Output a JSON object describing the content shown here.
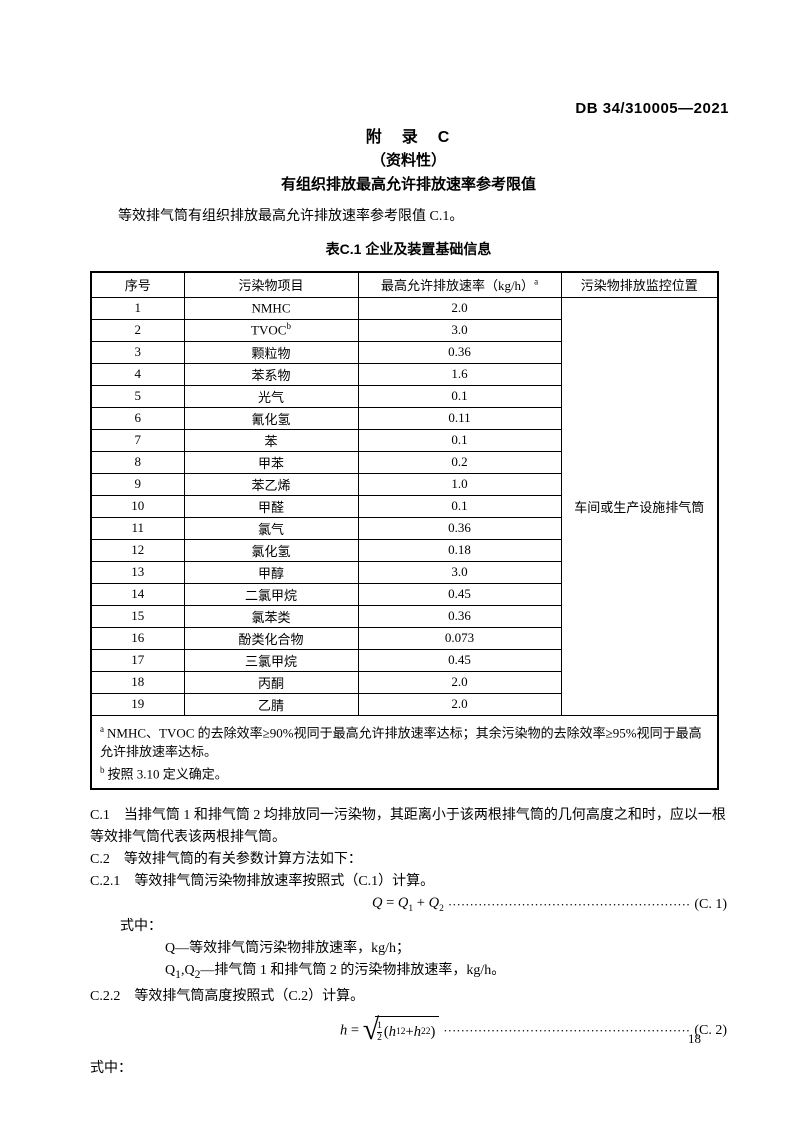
{
  "header": {
    "doc_number": "DB 34/310005—2021"
  },
  "appendix": {
    "title": "附　录　C",
    "classification": "（资料性）",
    "heading": "有组织排放最高允许排放速率参考限值",
    "intro": "等效排气筒有组织排放最高允许排放速率参考限值 C.1。"
  },
  "table": {
    "caption": "表C.1 企业及装置基础信息",
    "columns": [
      "序号",
      "污染物项目",
      "最高允许排放速率（kg/h）",
      "污染物排放监控位置"
    ],
    "rate_header_sup": "a",
    "monitoring_location": "车间或生产设施排气筒",
    "rows": [
      {
        "no": "1",
        "pollutant": "NMHC",
        "pollutant_sup": "",
        "rate": "2.0"
      },
      {
        "no": "2",
        "pollutant": "TVOC",
        "pollutant_sup": "b",
        "rate": "3.0"
      },
      {
        "no": "3",
        "pollutant": "颗粒物",
        "pollutant_sup": "",
        "rate": "0.36"
      },
      {
        "no": "4",
        "pollutant": "苯系物",
        "pollutant_sup": "",
        "rate": "1.6"
      },
      {
        "no": "5",
        "pollutant": "光气",
        "pollutant_sup": "",
        "rate": "0.1"
      },
      {
        "no": "6",
        "pollutant": "氰化氢",
        "pollutant_sup": "",
        "rate": "0.11"
      },
      {
        "no": "7",
        "pollutant": "苯",
        "pollutant_sup": "",
        "rate": "0.1"
      },
      {
        "no": "8",
        "pollutant": "甲苯",
        "pollutant_sup": "",
        "rate": "0.2"
      },
      {
        "no": "9",
        "pollutant": "苯乙烯",
        "pollutant_sup": "",
        "rate": "1.0"
      },
      {
        "no": "10",
        "pollutant": "甲醛",
        "pollutant_sup": "",
        "rate": "0.1"
      },
      {
        "no": "11",
        "pollutant": "氯气",
        "pollutant_sup": "",
        "rate": "0.36"
      },
      {
        "no": "12",
        "pollutant": "氯化氢",
        "pollutant_sup": "",
        "rate": "0.18"
      },
      {
        "no": "13",
        "pollutant": "甲醇",
        "pollutant_sup": "",
        "rate": "3.0"
      },
      {
        "no": "14",
        "pollutant": "二氯甲烷",
        "pollutant_sup": "",
        "rate": "0.45"
      },
      {
        "no": "15",
        "pollutant": "氯苯类",
        "pollutant_sup": "",
        "rate": "0.36"
      },
      {
        "no": "16",
        "pollutant": "酚类化合物",
        "pollutant_sup": "",
        "rate": "0.073"
      },
      {
        "no": "17",
        "pollutant": "三氯甲烷",
        "pollutant_sup": "",
        "rate": "0.45"
      },
      {
        "no": "18",
        "pollutant": "丙酮",
        "pollutant_sup": "",
        "rate": "2.0"
      },
      {
        "no": "19",
        "pollutant": "乙腈",
        "pollutant_sup": "",
        "rate": "2.0"
      }
    ],
    "footnotes": [
      {
        "marker": "a",
        "text": "NMHC、TVOC 的去除效率≥90%视同于最高允许排放速率达标；其余污染物的去除效率≥95%视同于最高允许排放速率达标。"
      },
      {
        "marker": "b",
        "text": "按照 3.10 定义确定。"
      }
    ]
  },
  "body": {
    "c1": "C.1　当排气筒 1 和排气筒 2 均排放同一污染物，其距离小于该两根排气筒的几何高度之和时，应以一根等效排气筒代表该两根排气筒。",
    "c2": "C.2　等效排气筒的有关参数计算方法如下：",
    "c21": "C.2.1　等效排气筒污染物排放速率按照式（C.1）计算。",
    "eq1": {
      "lhs": "Q",
      "equals": " = ",
      "q1": "Q",
      "q1_sub": "1",
      "plus": " + ",
      "q2": "Q",
      "q2_sub": "2",
      "label": "(C. 1)"
    },
    "where1": "式中：",
    "def_q": {
      "sym": "Q",
      "text": "—等效排气筒污染物排放速率，kg/h；"
    },
    "def_q12": {
      "sym1": "Q",
      "sym1_sub": "1",
      "comma": ",",
      "sym2": "Q",
      "sym2_sub": "2",
      "text": "—排气筒 1 和排气筒 2 的污染物排放速率，kg/h。"
    },
    "c22": "C.2.2　等效排气筒高度按照式（C.2）计算。",
    "eq2": {
      "lhs": "h",
      "equals": " = ",
      "frac_num": "1",
      "frac_den": "2",
      "open": "(",
      "h1": "h",
      "h1_sub": "1",
      "h1_sup": "2",
      "plus": " + ",
      "h2": "h",
      "h2_sub": "2",
      "h2_sup": "2",
      "close": ")",
      "label": "(C. 2)"
    },
    "where2": "式中："
  },
  "footer": {
    "page_number": "18"
  }
}
